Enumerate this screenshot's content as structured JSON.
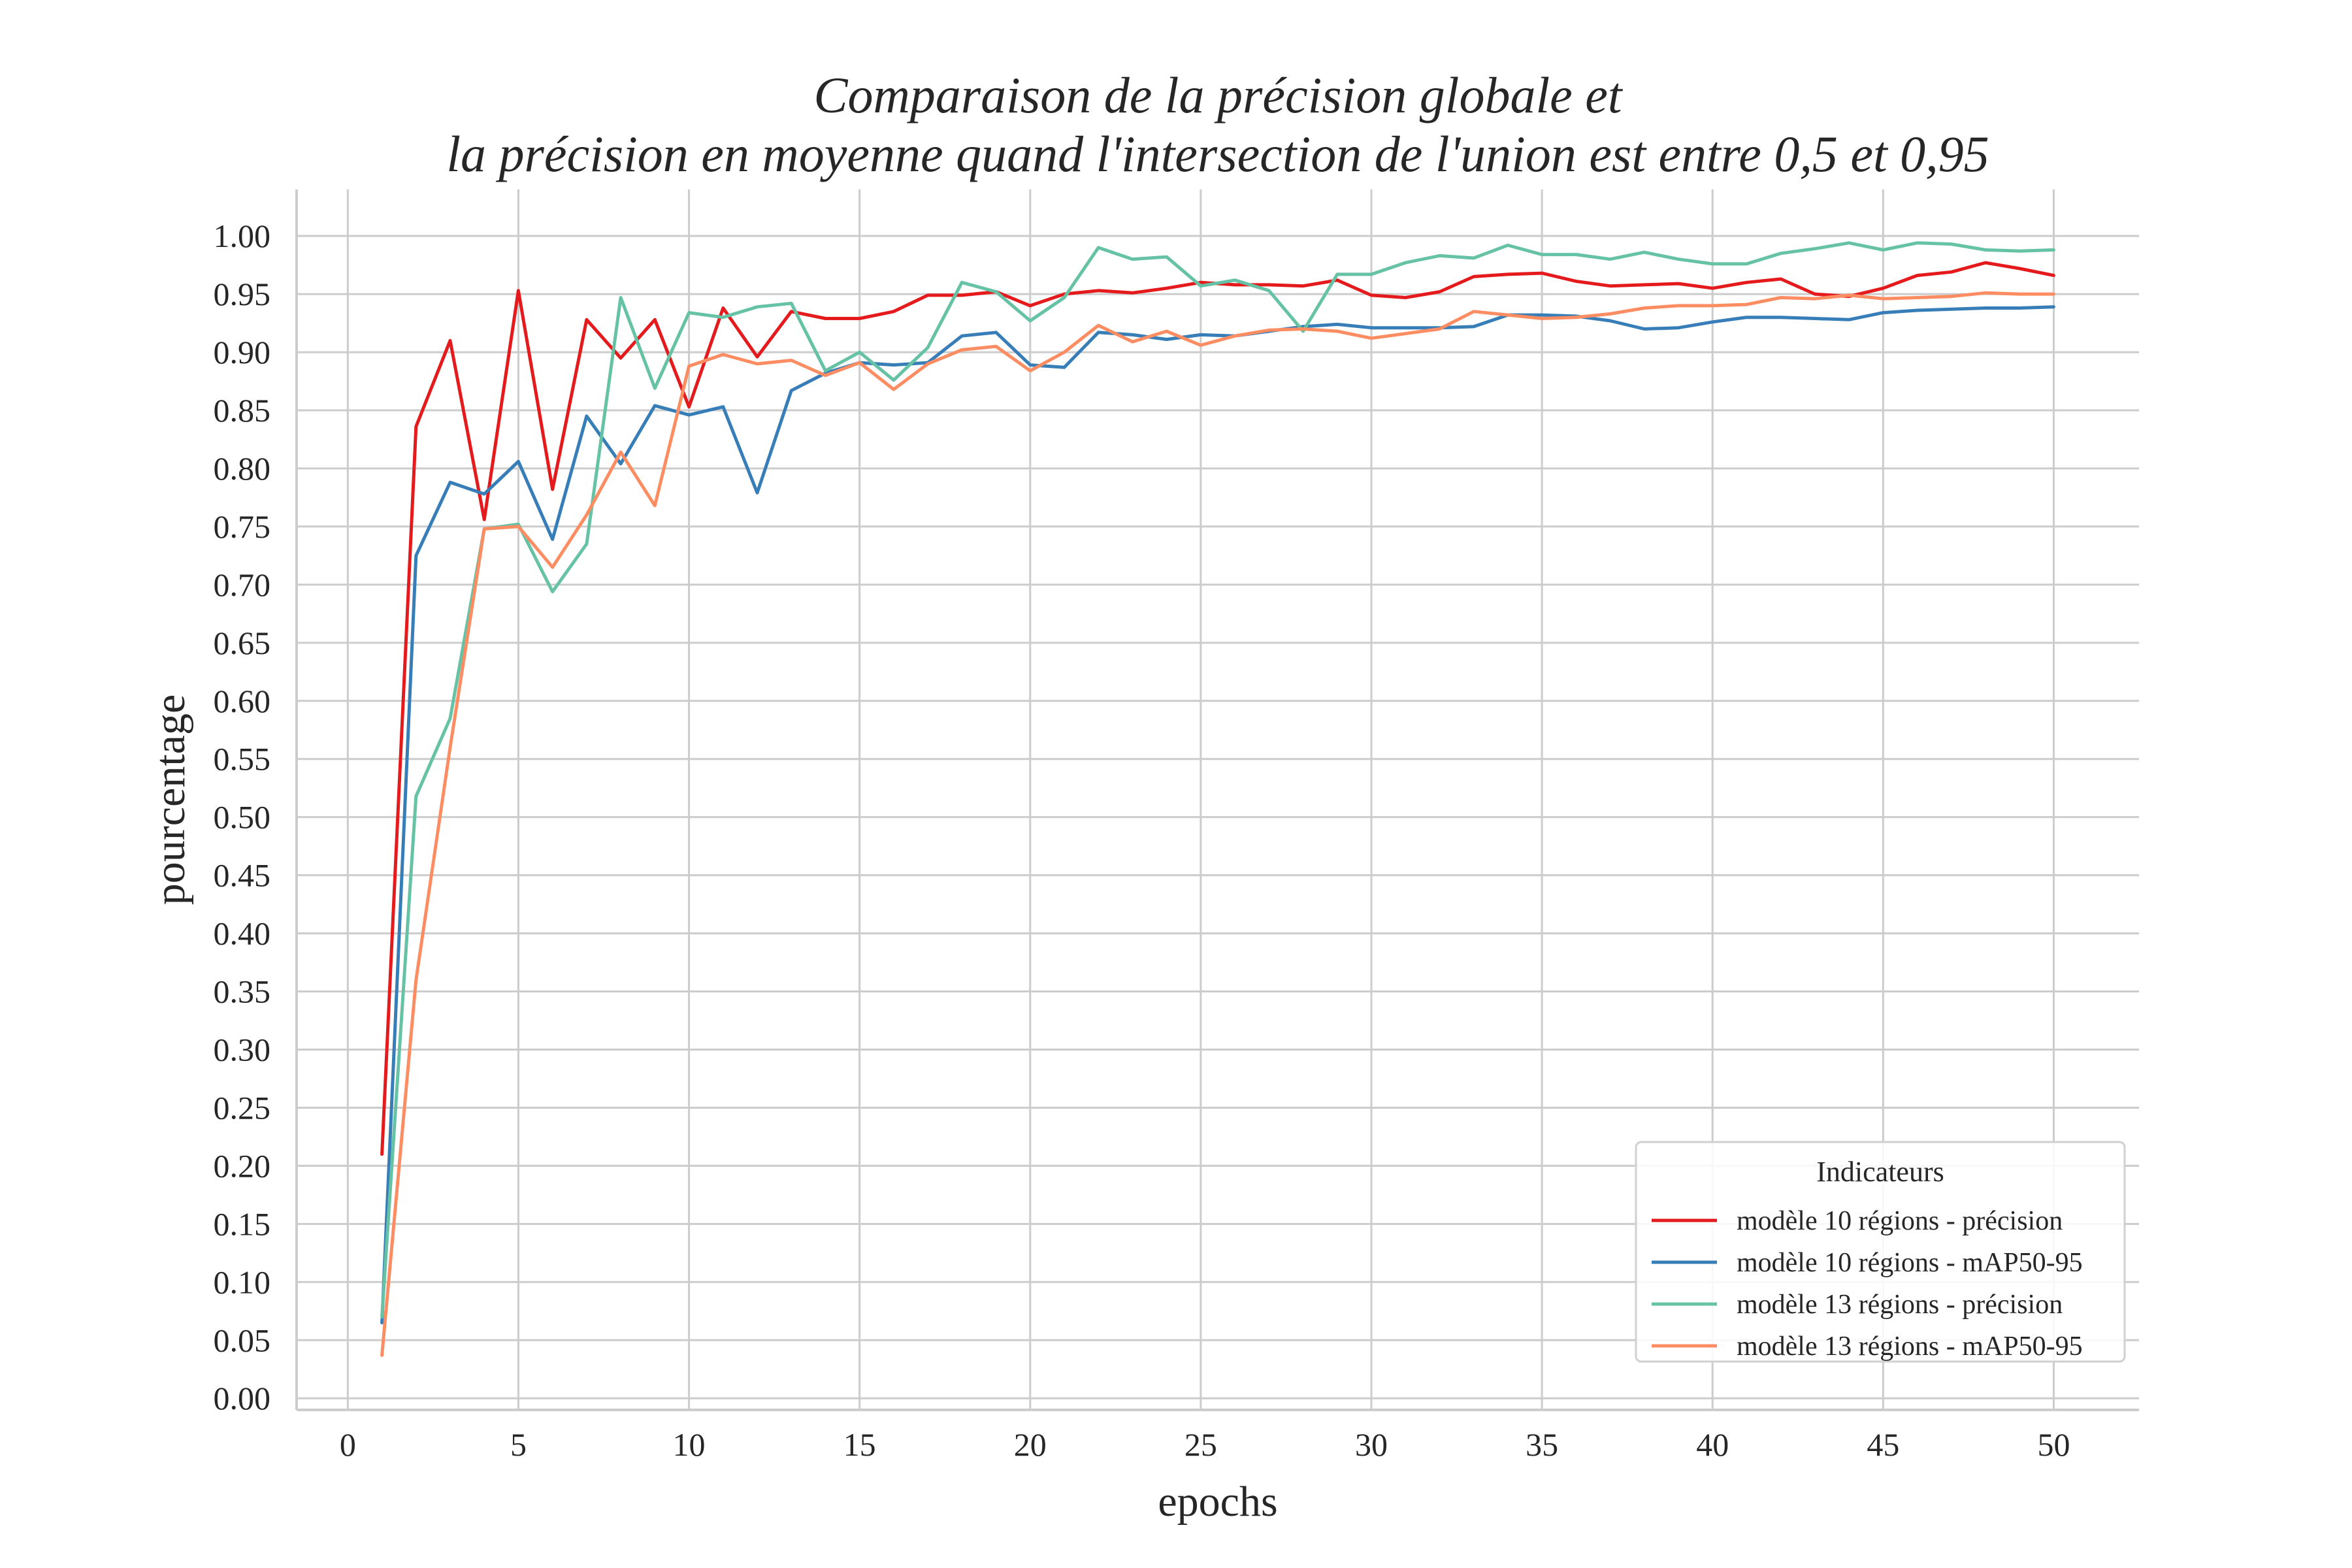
{
  "chart_data": {
    "type": "line",
    "title": [
      "Comparaison de la précision globale et",
      "la précision en moyenne quand l'intersection de l'union est entre 0,5 et 0,95"
    ],
    "xlabel": "epochs",
    "ylabel": "pourcentage",
    "xlim": [
      -1.5,
      52.5
    ],
    "ylim": [
      -0.01,
      1.04
    ],
    "xticks": [
      0,
      5,
      10,
      15,
      20,
      25,
      30,
      35,
      40,
      45,
      50
    ],
    "xtick_labels": [
      "0",
      "5",
      "10",
      "15",
      "20",
      "25",
      "30",
      "35",
      "40",
      "45",
      "50"
    ],
    "yticks": [
      0,
      0.05,
      0.1,
      0.15,
      0.2,
      0.25,
      0.3,
      0.35,
      0.4,
      0.45,
      0.5,
      0.55,
      0.6,
      0.65,
      0.7,
      0.75,
      0.8,
      0.85,
      0.9,
      0.95,
      1.0
    ],
    "ytick_labels": [
      "0.00",
      "0.05",
      "0.10",
      "0.15",
      "0.20",
      "0.25",
      "0.30",
      "0.35",
      "0.40",
      "0.45",
      "0.50",
      "0.55",
      "0.60",
      "0.65",
      "0.70",
      "0.75",
      "0.80",
      "0.85",
      "0.90",
      "0.95",
      "1.00"
    ],
    "grid": true,
    "legend": {
      "title": "Indicateurs",
      "placement": "lower-right"
    },
    "x": [
      1,
      2,
      3,
      4,
      5,
      6,
      7,
      8,
      9,
      10,
      11,
      12,
      13,
      14,
      15,
      16,
      17,
      18,
      19,
      20,
      21,
      22,
      23,
      24,
      25,
      26,
      27,
      28,
      29,
      30,
      31,
      32,
      33,
      34,
      35,
      36,
      37,
      38,
      39,
      40,
      41,
      42,
      43,
      44,
      45,
      46,
      47,
      48,
      49,
      50
    ],
    "series": [
      {
        "name": "modèle 10 régions - précision",
        "color": "#e41a1c",
        "values": [
          0.21,
          0.836,
          0.91,
          0.756,
          0.953,
          0.782,
          0.928,
          0.895,
          0.928,
          0.853,
          0.938,
          0.896,
          0.935,
          0.929,
          0.929,
          0.935,
          0.949,
          0.949,
          0.952,
          0.94,
          0.95,
          0.953,
          0.951,
          0.955,
          0.96,
          0.958,
          0.958,
          0.957,
          0.962,
          0.949,
          0.947,
          0.952,
          0.965,
          0.967,
          0.968,
          0.961,
          0.957,
          0.958,
          0.959,
          0.955,
          0.96,
          0.963,
          0.95,
          0.948,
          0.955,
          0.966,
          0.969,
          0.977,
          0.972,
          0.966
        ]
      },
      {
        "name": "modèle 10 régions - mAP50-95",
        "color": "#377eb8",
        "values": [
          0.065,
          0.725,
          0.788,
          0.778,
          0.806,
          0.739,
          0.845,
          0.804,
          0.854,
          0.846,
          0.853,
          0.779,
          0.867,
          0.882,
          0.891,
          0.889,
          0.891,
          0.914,
          0.917,
          0.889,
          0.887,
          0.917,
          0.915,
          0.911,
          0.915,
          0.914,
          0.918,
          0.922,
          0.924,
          0.921,
          0.921,
          0.921,
          0.922,
          0.932,
          0.932,
          0.931,
          0.927,
          0.92,
          0.921,
          0.926,
          0.93,
          0.93,
          0.929,
          0.928,
          0.934,
          0.936,
          0.937,
          0.938,
          0.938,
          0.939
        ]
      },
      {
        "name": "modèle 13 régions - précision",
        "color": "#66c2a5",
        "values": [
          0.07,
          0.518,
          0.585,
          0.748,
          0.752,
          0.694,
          0.735,
          0.947,
          0.869,
          0.934,
          0.93,
          0.939,
          0.942,
          0.884,
          0.9,
          0.876,
          0.904,
          0.96,
          0.952,
          0.927,
          0.947,
          0.99,
          0.98,
          0.982,
          0.957,
          0.962,
          0.953,
          0.918,
          0.967,
          0.967,
          0.977,
          0.983,
          0.981,
          0.992,
          0.984,
          0.984,
          0.98,
          0.986,
          0.98,
          0.976,
          0.976,
          0.985,
          0.989,
          0.994,
          0.988,
          0.994,
          0.993,
          0.988,
          0.987,
          0.988
        ]
      },
      {
        "name": "modèle 13 régions - mAP50-95",
        "color": "#fc8d62",
        "values": [
          0.037,
          0.36,
          0.56,
          0.748,
          0.75,
          0.715,
          0.76,
          0.814,
          0.768,
          0.888,
          0.898,
          0.89,
          0.893,
          0.88,
          0.891,
          0.868,
          0.89,
          0.902,
          0.905,
          0.884,
          0.9,
          0.923,
          0.909,
          0.918,
          0.906,
          0.914,
          0.919,
          0.92,
          0.918,
          0.912,
          0.916,
          0.92,
          0.935,
          0.932,
          0.929,
          0.93,
          0.933,
          0.938,
          0.94,
          0.94,
          0.941,
          0.947,
          0.946,
          0.949,
          0.946,
          0.947,
          0.948,
          0.951,
          0.95,
          0.95
        ]
      }
    ]
  }
}
